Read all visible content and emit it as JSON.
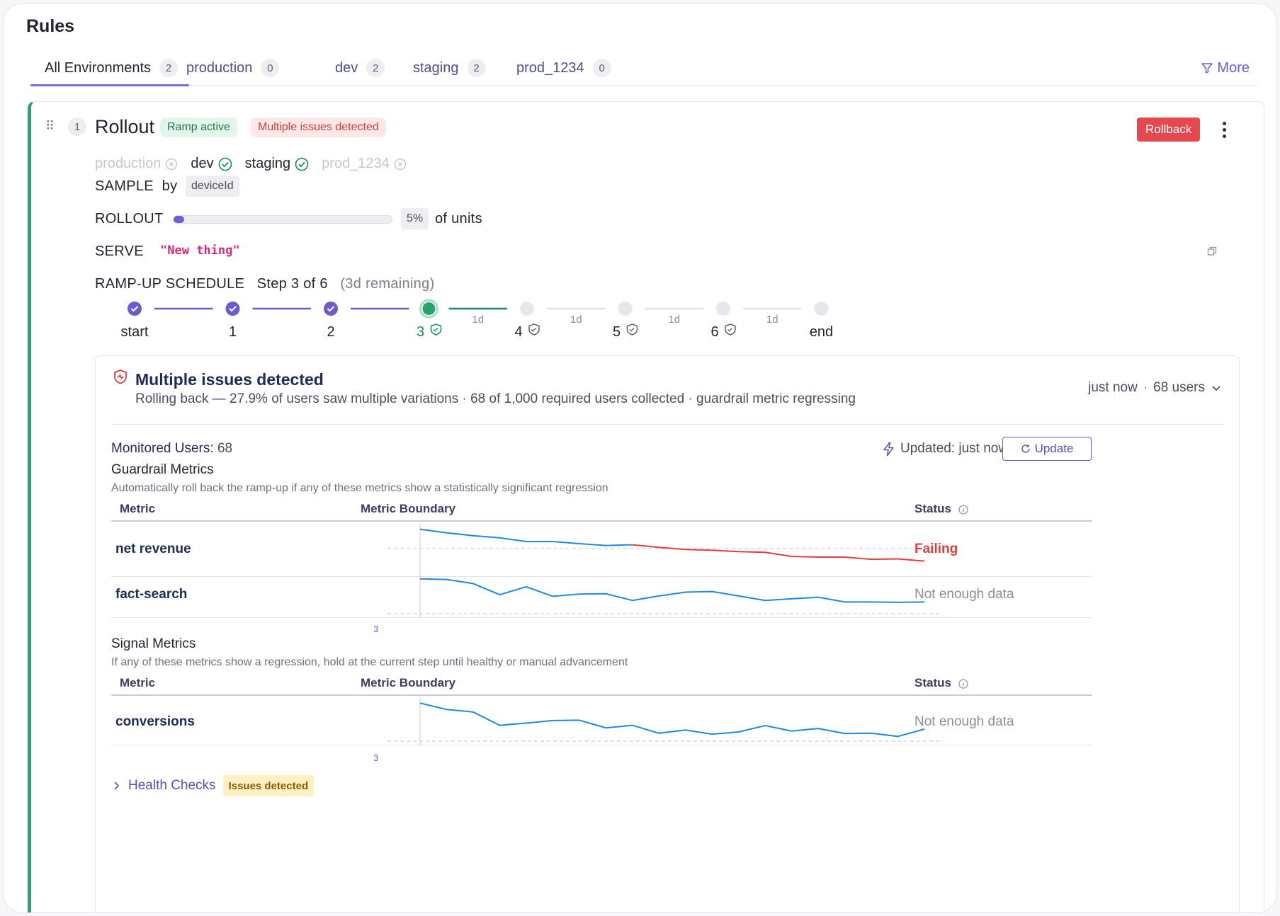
{
  "page": {
    "title": "Rules"
  },
  "tabs": [
    {
      "label": "All Environments",
      "count": "2"
    },
    {
      "label": "production",
      "count": "0"
    },
    {
      "label": "dev",
      "count": "2"
    },
    {
      "label": "staging",
      "count": "2"
    },
    {
      "label": "prod_1234",
      "count": "0"
    }
  ],
  "more_label": "More",
  "rule": {
    "number": "1",
    "title": "Rollout",
    "badge_status": "Ramp active",
    "badge_issue": "Multiple issues detected",
    "rollback_label": "Rollback",
    "environments": [
      {
        "name": "production",
        "enabled": false
      },
      {
        "name": "dev",
        "enabled": true
      },
      {
        "name": "staging",
        "enabled": true
      },
      {
        "name": "prod_1234",
        "enabled": false
      }
    ],
    "sample_label": "SAMPLE",
    "sample_by": "by",
    "sample_attr": "deviceId",
    "rollout_label": "ROLLOUT",
    "rollout_percent": 5,
    "rollout_value": "5%",
    "rollout_suffix": "of units",
    "serve_label": "SERVE",
    "serve_value": "\"New thing\"",
    "ramp_label": "RAMP-UP SCHEDULE",
    "ramp_step": "Step 3 of 6",
    "ramp_remaining": "(3d remaining)",
    "steps": [
      {
        "label": "start",
        "state": "done",
        "duration": ""
      },
      {
        "label": "1",
        "state": "done",
        "duration": ""
      },
      {
        "label": "2",
        "state": "done",
        "duration": ""
      },
      {
        "label": "3",
        "state": "current",
        "duration": "1d"
      },
      {
        "label": "4",
        "state": "pending",
        "duration": "1d"
      },
      {
        "label": "5",
        "state": "pending",
        "duration": "1d"
      },
      {
        "label": "6",
        "state": "pending",
        "duration": "1d"
      },
      {
        "label": "end",
        "state": "pending",
        "duration": ""
      }
    ]
  },
  "issue": {
    "title": "Multiple issues detected",
    "subtitle": "Rolling back — 27.9% of users saw multiple variations · 68 of 1,000 required users collected · guardrail metric regressing",
    "time": "just now",
    "dot": "·",
    "users": "68 users",
    "monitored_label": "Monitored Users:",
    "monitored_value": "68",
    "updated": "Updated: just now",
    "update_label": "Update"
  },
  "guardrail": {
    "title": "Guardrail Metrics",
    "desc": "Automatically roll back the ramp-up if any of these metrics show a statistically significant regression",
    "col_metric": "Metric",
    "col_boundary": "Metric Boundary",
    "col_status": "Status",
    "step_marker": "3",
    "metrics": [
      {
        "name": "net revenue",
        "status": "Failing",
        "values": [
          2.0,
          1.9,
          1.82,
          1.76,
          1.66,
          1.66,
          1.6,
          1.55,
          1.57,
          1.5,
          1.44,
          1.42,
          1.38,
          1.36,
          1.25,
          1.23,
          1.23,
          1.17,
          1.18,
          1.12
        ],
        "fail_from": 8
      },
      {
        "name": "fact-search",
        "status": "Not enough data",
        "values": [
          1.9,
          1.88,
          1.75,
          1.4,
          1.65,
          1.35,
          1.42,
          1.43,
          1.22,
          1.36,
          1.48,
          1.5,
          1.36,
          1.22,
          1.27,
          1.32,
          1.17,
          1.17,
          1.16,
          1.17
        ],
        "fail_from": -1
      }
    ]
  },
  "signal": {
    "title": "Signal Metrics",
    "desc": "If any of these metrics show a regression, hold at the current step until healthy or manual advancement",
    "col_metric": "Metric",
    "col_boundary": "Metric Boundary",
    "col_status": "Status",
    "step_marker": "3",
    "metrics": [
      {
        "name": "conversions",
        "status": "Not enough data",
        "values": [
          2.0,
          1.8,
          1.72,
          1.3,
          1.37,
          1.45,
          1.46,
          1.22,
          1.3,
          1.05,
          1.15,
          1.02,
          1.09,
          1.29,
          1.12,
          1.2,
          1.04,
          1.05,
          0.95,
          1.18
        ],
        "fail_from": -1
      }
    ]
  },
  "health": {
    "label": "Health Checks",
    "badge": "Issues detected"
  },
  "colors": {
    "accent": "#6a5bd0",
    "success": "#27a36f",
    "danger": "#e03e3e",
    "series": "#1e88e5"
  }
}
